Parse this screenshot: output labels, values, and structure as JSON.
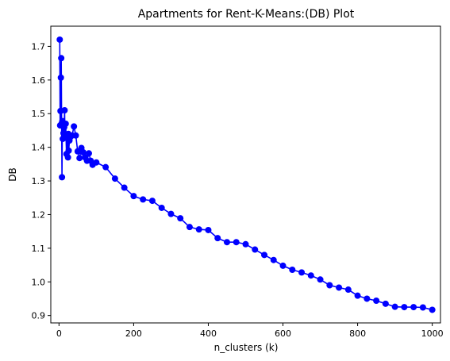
{
  "chart_data": {
    "type": "line",
    "title": "Apartments for Rent-K-Means:(DB) Plot",
    "xlabel": "n_clusters (k)",
    "ylabel": "DB",
    "xlim": [
      -22,
      1022
    ],
    "ylim": [
      0.878,
      1.76
    ],
    "grid": false,
    "xticks": [
      0,
      200,
      400,
      600,
      800,
      1000
    ],
    "xtick_labels": [
      "0",
      "200",
      "400",
      "600",
      "800",
      "1000"
    ],
    "yticks": [
      0.9,
      1.0,
      1.1,
      1.2,
      1.3,
      1.4,
      1.5,
      1.6,
      1.7
    ],
    "ytick_labels": [
      "0.9",
      "1.0",
      "1.1",
      "1.2",
      "1.3",
      "1.4",
      "1.5",
      "1.6",
      "1.7"
    ],
    "series": [
      {
        "color": "#0000ff",
        "marker": "circle",
        "x": [
          2,
          3,
          4,
          5,
          6,
          7,
          8,
          9,
          10,
          12,
          14,
          15,
          16,
          18,
          20,
          22,
          24,
          25,
          26,
          28,
          30,
          35,
          40,
          45,
          50,
          55,
          60,
          65,
          70,
          75,
          80,
          85,
          90,
          100,
          125,
          150,
          175,
          200,
          225,
          250,
          275,
          300,
          325,
          350,
          375,
          400,
          425,
          450,
          475,
          500,
          525,
          550,
          575,
          600,
          625,
          650,
          675,
          700,
          725,
          750,
          775,
          800,
          825,
          850,
          875,
          900,
          925,
          950,
          975,
          1000
        ],
        "y": [
          1.72,
          1.465,
          1.508,
          1.607,
          1.665,
          1.471,
          1.311,
          1.478,
          1.425,
          1.442,
          1.46,
          1.51,
          1.428,
          1.47,
          1.38,
          1.43,
          1.37,
          1.44,
          1.39,
          1.42,
          1.43,
          1.435,
          1.462,
          1.435,
          1.388,
          1.368,
          1.398,
          1.385,
          1.37,
          1.36,
          1.382,
          1.36,
          1.348,
          1.355,
          1.341,
          1.307,
          1.28,
          1.255,
          1.245,
          1.241,
          1.22,
          1.202,
          1.189,
          1.163,
          1.156,
          1.154,
          1.13,
          1.118,
          1.118,
          1.112,
          1.096,
          1.08,
          1.065,
          1.048,
          1.036,
          1.028,
          1.019,
          1.007,
          0.99,
          0.983,
          0.977,
          0.959,
          0.95,
          0.944,
          0.935,
          0.926,
          0.925,
          0.925,
          0.924,
          0.917
        ]
      }
    ]
  }
}
